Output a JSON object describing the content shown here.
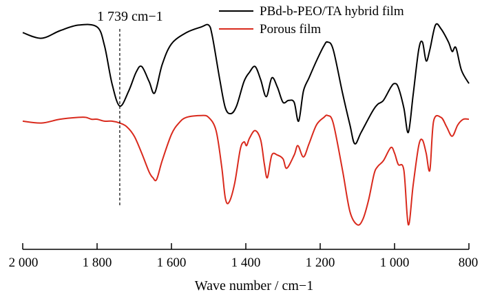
{
  "chart_data": {
    "type": "line",
    "xlabel": "Wave number / cm−1",
    "xlim": [
      2000,
      800
    ],
    "x_reversed": true,
    "y_axis_shown": false,
    "x_ticks": [
      2000,
      1800,
      1600,
      1400,
      1200,
      1000,
      800
    ],
    "x_tick_labels": [
      "2 000",
      "1 800",
      "1 600",
      "1 400",
      "1 200",
      "1 000",
      "800"
    ],
    "legend_position": "top-right",
    "annotation": {
      "text": "1 739 cm−1",
      "x": 1739,
      "style": "dashed vertical line"
    },
    "series": [
      {
        "name": "PBd-b-PEO/TA hybrid film",
        "color": "#000000",
        "points": [
          [
            2000,
            0.95
          ],
          [
            1950,
            0.92
          ],
          [
            1900,
            0.96
          ],
          [
            1850,
            0.99
          ],
          [
            1800,
            0.98
          ],
          [
            1780,
            0.88
          ],
          [
            1760,
            0.68
          ],
          [
            1739,
            0.56
          ],
          [
            1715,
            0.64
          ],
          [
            1695,
            0.74
          ],
          [
            1680,
            0.77
          ],
          [
            1660,
            0.69
          ],
          [
            1645,
            0.63
          ],
          [
            1625,
            0.78
          ],
          [
            1600,
            0.89
          ],
          [
            1560,
            0.95
          ],
          [
            1520,
            0.98
          ],
          [
            1500,
            0.99
          ],
          [
            1490,
            0.93
          ],
          [
            1470,
            0.7
          ],
          [
            1455,
            0.55
          ],
          [
            1440,
            0.52
          ],
          [
            1425,
            0.56
          ],
          [
            1405,
            0.69
          ],
          [
            1390,
            0.74
          ],
          [
            1375,
            0.77
          ],
          [
            1360,
            0.7
          ],
          [
            1345,
            0.61
          ],
          [
            1330,
            0.71
          ],
          [
            1315,
            0.66
          ],
          [
            1300,
            0.58
          ],
          [
            1285,
            0.59
          ],
          [
            1270,
            0.58
          ],
          [
            1258,
            0.48
          ],
          [
            1245,
            0.64
          ],
          [
            1230,
            0.71
          ],
          [
            1210,
            0.8
          ],
          [
            1190,
            0.88
          ],
          [
            1180,
            0.9
          ],
          [
            1165,
            0.86
          ],
          [
            1140,
            0.63
          ],
          [
            1120,
            0.46
          ],
          [
            1107,
            0.36
          ],
          [
            1090,
            0.42
          ],
          [
            1060,
            0.53
          ],
          [
            1045,
            0.57
          ],
          [
            1030,
            0.59
          ],
          [
            1010,
            0.66
          ],
          [
            1000,
            0.68
          ],
          [
            990,
            0.66
          ],
          [
            975,
            0.55
          ],
          [
            963,
            0.42
          ],
          [
            950,
            0.62
          ],
          [
            935,
            0.86
          ],
          [
            925,
            0.9
          ],
          [
            915,
            0.8
          ],
          [
            905,
            0.86
          ],
          [
            890,
            0.99
          ],
          [
            875,
            0.97
          ],
          [
            855,
            0.9
          ],
          [
            845,
            0.85
          ],
          [
            835,
            0.87
          ],
          [
            820,
            0.75
          ],
          [
            800,
            0.68
          ]
        ]
      },
      {
        "name": "Porous film",
        "color": "#d9291c",
        "points": [
          [
            2000,
            0.48
          ],
          [
            1950,
            0.47
          ],
          [
            1900,
            0.49
          ],
          [
            1850,
            0.5
          ],
          [
            1830,
            0.5
          ],
          [
            1815,
            0.49
          ],
          [
            1800,
            0.49
          ],
          [
            1780,
            0.48
          ],
          [
            1760,
            0.48
          ],
          [
            1739,
            0.47
          ],
          [
            1720,
            0.45
          ],
          [
            1700,
            0.4
          ],
          [
            1680,
            0.31
          ],
          [
            1660,
            0.21
          ],
          [
            1650,
            0.18
          ],
          [
            1640,
            0.17
          ],
          [
            1625,
            0.27
          ],
          [
            1600,
            0.41
          ],
          [
            1580,
            0.47
          ],
          [
            1560,
            0.5
          ],
          [
            1520,
            0.51
          ],
          [
            1500,
            0.5
          ],
          [
            1480,
            0.43
          ],
          [
            1465,
            0.24
          ],
          [
            1455,
            0.07
          ],
          [
            1445,
            0.05
          ],
          [
            1430,
            0.15
          ],
          [
            1415,
            0.33
          ],
          [
            1405,
            0.37
          ],
          [
            1398,
            0.35
          ],
          [
            1390,
            0.39
          ],
          [
            1375,
            0.43
          ],
          [
            1360,
            0.38
          ],
          [
            1350,
            0.25
          ],
          [
            1342,
            0.18
          ],
          [
            1330,
            0.3
          ],
          [
            1315,
            0.3
          ],
          [
            1300,
            0.28
          ],
          [
            1290,
            0.23
          ],
          [
            1270,
            0.3
          ],
          [
            1260,
            0.35
          ],
          [
            1245,
            0.29
          ],
          [
            1230,
            0.36
          ],
          [
            1210,
            0.46
          ],
          [
            1190,
            0.5
          ],
          [
            1180,
            0.51
          ],
          [
            1165,
            0.47
          ],
          [
            1140,
            0.22
          ],
          [
            1120,
            0.0
          ],
          [
            1100,
            -0.07
          ],
          [
            1085,
            -0.04
          ],
          [
            1070,
            0.06
          ],
          [
            1055,
            0.2
          ],
          [
            1045,
            0.24
          ],
          [
            1030,
            0.27
          ],
          [
            1010,
            0.34
          ],
          [
            1000,
            0.31
          ],
          [
            990,
            0.25
          ],
          [
            975,
            0.22
          ],
          [
            963,
            -0.07
          ],
          [
            950,
            0.14
          ],
          [
            935,
            0.35
          ],
          [
            925,
            0.38
          ],
          [
            915,
            0.31
          ],
          [
            905,
            0.22
          ],
          [
            895,
            0.48
          ],
          [
            875,
            0.5
          ],
          [
            860,
            0.45
          ],
          [
            845,
            0.4
          ],
          [
            830,
            0.46
          ],
          [
            815,
            0.49
          ],
          [
            800,
            0.49
          ]
        ]
      }
    ]
  }
}
